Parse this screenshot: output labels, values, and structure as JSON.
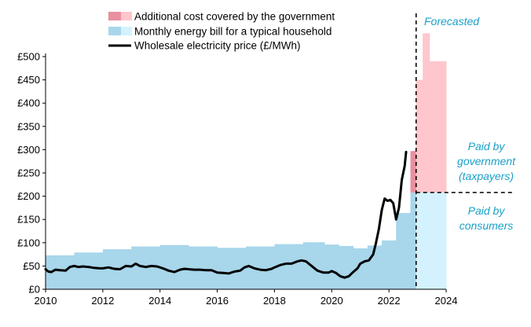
{
  "chart_data": {
    "type": "area",
    "xlim": [
      2010,
      2024
    ],
    "ylim": [
      0,
      500
    ],
    "x_ticks": [
      "2010",
      "2012",
      "2014",
      "2016",
      "2018",
      "2020",
      "2022",
      "2024"
    ],
    "y_ticks": [
      "£0",
      "£50",
      "£100",
      "£150",
      "£200",
      "£250",
      "£300",
      "£350",
      "£400",
      "£450",
      "£500"
    ],
    "legend": [
      {
        "label": "Additional cost covered by the government",
        "colors": [
          "#e8909f",
          "#ffc6cd"
        ]
      },
      {
        "label": "Monthly energy bill for a typical household",
        "colors": [
          "#a8d6eb",
          "#d3f2fd"
        ]
      },
      {
        "label": "Wholesale electricity price (£/MWh)",
        "colors": [
          "#000000"
        ]
      }
    ],
    "forecast_start": 2022.95,
    "government_threshold": 208,
    "annotations": {
      "forecasted": "Forecasted",
      "paid_by_government": [
        "Paid by",
        "government",
        "(taxpayers)"
      ],
      "paid_by_consumers": [
        "Paid by",
        "consumers"
      ]
    },
    "colors": {
      "bill_actual": "#a8d6eb",
      "bill_forecast": "#d3f2fd",
      "gov_actual": "#e8909f",
      "gov_forecast": "#ffc6cd",
      "price_line": "#000000",
      "annotation": "#1aa0c8",
      "reference_lines": "#000000"
    },
    "series": [
      {
        "name": "Monthly energy bill for a typical household",
        "steps": [
          {
            "x0": 2010.0,
            "x1": 2011.0,
            "y": 73
          },
          {
            "x0": 2011.0,
            "x1": 2012.0,
            "y": 79
          },
          {
            "x0": 2012.0,
            "x1": 2013.0,
            "y": 86
          },
          {
            "x0": 2013.0,
            "x1": 2014.0,
            "y": 92
          },
          {
            "x0": 2014.0,
            "x1": 2015.0,
            "y": 95
          },
          {
            "x0": 2015.0,
            "x1": 2016.0,
            "y": 92
          },
          {
            "x0": 2016.0,
            "x1": 2017.0,
            "y": 89
          },
          {
            "x0": 2017.0,
            "x1": 2018.0,
            "y": 92
          },
          {
            "x0": 2018.0,
            "x1": 2019.0,
            "y": 97
          },
          {
            "x0": 2019.0,
            "x1": 2019.75,
            "y": 101
          },
          {
            "x0": 2019.75,
            "x1": 2020.25,
            "y": 96
          },
          {
            "x0": 2020.25,
            "x1": 2020.75,
            "y": 93
          },
          {
            "x0": 2020.75,
            "x1": 2021.25,
            "y": 88
          },
          {
            "x0": 2021.25,
            "x1": 2021.75,
            "y": 94
          },
          {
            "x0": 2021.75,
            "x1": 2022.25,
            "y": 105
          },
          {
            "x0": 2022.25,
            "x1": 2022.75,
            "y": 164
          },
          {
            "x0": 2022.75,
            "x1": 2022.95,
            "y": 208
          },
          {
            "x0": 2022.95,
            "x1": 2024.0,
            "y": 208
          }
        ]
      },
      {
        "name": "Additional cost covered by the government",
        "steps": [
          {
            "x0": 2022.75,
            "x1": 2022.95,
            "y0": 208,
            "y1": 297
          },
          {
            "x0": 2022.95,
            "x1": 2023.18,
            "y0": 208,
            "y1": 450
          },
          {
            "x0": 2023.18,
            "x1": 2023.42,
            "y0": 208,
            "y1": 550
          },
          {
            "x0": 2023.42,
            "x1": 2024.0,
            "y0": 208,
            "y1": 490
          }
        ]
      },
      {
        "name": "Wholesale electricity price (£/MWh)",
        "x": [
          2010.0,
          2010.1,
          2010.2,
          2010.35,
          2010.5,
          2010.7,
          2010.85,
          2011.0,
          2011.15,
          2011.3,
          2011.5,
          2011.7,
          2011.9,
          2012.0,
          2012.2,
          2012.4,
          2012.6,
          2012.8,
          2013.0,
          2013.15,
          2013.3,
          2013.5,
          2013.7,
          2013.9,
          2014.1,
          2014.3,
          2014.5,
          2014.7,
          2014.85,
          2015.0,
          2015.2,
          2015.4,
          2015.6,
          2015.8,
          2016.0,
          2016.2,
          2016.4,
          2016.6,
          2016.8,
          2016.95,
          2017.1,
          2017.3,
          2017.5,
          2017.7,
          2017.9,
          2018.0,
          2018.2,
          2018.4,
          2018.6,
          2018.8,
          2018.95,
          2019.1,
          2019.3,
          2019.5,
          2019.7,
          2019.9,
          2020.0,
          2020.15,
          2020.3,
          2020.45,
          2020.6,
          2020.75,
          2020.9,
          2021.0,
          2021.15,
          2021.3,
          2021.45,
          2021.55,
          2021.65,
          2021.75,
          2021.85,
          2021.95,
          2022.05,
          2022.15,
          2022.25,
          2022.35,
          2022.45,
          2022.55,
          2022.6
        ],
        "y": [
          43,
          38,
          37,
          42,
          41,
          40,
          48,
          50,
          48,
          49,
          48,
          46,
          45,
          45,
          47,
          44,
          43,
          50,
          49,
          55,
          50,
          48,
          50,
          49,
          45,
          40,
          37,
          42,
          44,
          43,
          42,
          42,
          41,
          41,
          36,
          35,
          34,
          38,
          40,
          47,
          50,
          45,
          42,
          41,
          44,
          47,
          52,
          55,
          55,
          60,
          62,
          60,
          50,
          40,
          36,
          36,
          39,
          35,
          28,
          25,
          28,
          37,
          45,
          55,
          60,
          62,
          75,
          100,
          130,
          170,
          195,
          190,
          192,
          185,
          150,
          175,
          235,
          265,
          295
        ]
      }
    ]
  }
}
